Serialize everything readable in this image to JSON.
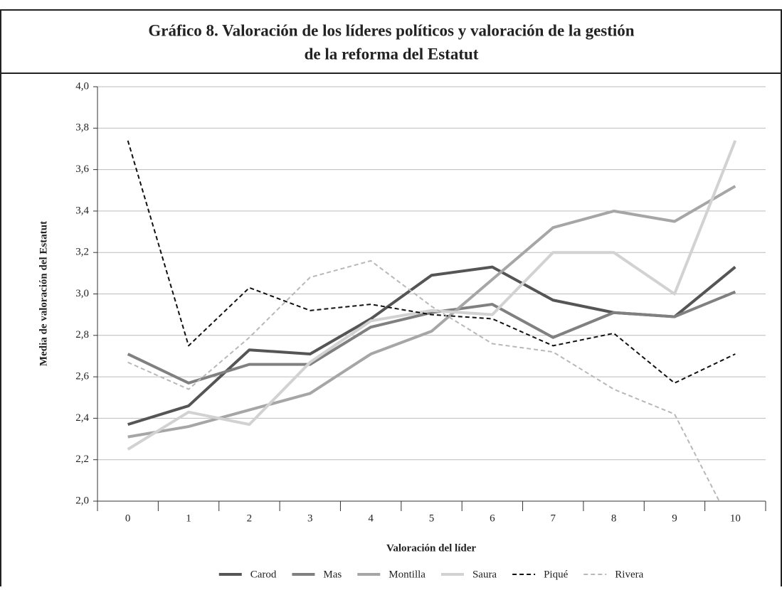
{
  "chart_data": {
    "type": "line",
    "title": [
      "Gráfico 8. Valoración de los líderes políticos y valoración de la gestión",
      "de la reforma del Estatut"
    ],
    "x_label": "Valoración del líder",
    "y_label": "Media de valoración del Estatut",
    "categories": [
      "0",
      "1",
      "2",
      "3",
      "4",
      "5",
      "6",
      "7",
      "8",
      "9",
      "10"
    ],
    "ylim": [
      2.0,
      4.0
    ],
    "yticks": [
      {
        "value": 2.0,
        "label": "2,0"
      },
      {
        "value": 2.2,
        "label": "2,2"
      },
      {
        "value": 2.4,
        "label": "2,4"
      },
      {
        "value": 2.6,
        "label": "2,6"
      },
      {
        "value": 2.8,
        "label": "2,8"
      },
      {
        "value": 3.0,
        "label": "3,0"
      },
      {
        "value": 3.2,
        "label": "3,2"
      },
      {
        "value": 3.4,
        "label": "3,4"
      },
      {
        "value": 3.6,
        "label": "3,6"
      },
      {
        "value": 3.8,
        "label": "3,8"
      },
      {
        "value": 4.0,
        "label": "4,0"
      }
    ],
    "grid": true,
    "legend": "bottom",
    "series": [
      {
        "name": "Carod",
        "color": "#555555",
        "style": "solid",
        "values": [
          2.37,
          2.46,
          2.73,
          2.71,
          2.88,
          3.09,
          3.13,
          2.97,
          2.91,
          2.89,
          3.13
        ]
      },
      {
        "name": "Mas",
        "color": "#808080",
        "style": "solid",
        "values": [
          2.71,
          2.57,
          2.66,
          2.66,
          2.84,
          2.91,
          2.95,
          2.79,
          2.91,
          2.89,
          3.01
        ]
      },
      {
        "name": "Montilla",
        "color": "#a6a6a6",
        "style": "solid",
        "values": [
          2.31,
          2.36,
          2.44,
          2.52,
          2.71,
          2.82,
          3.07,
          3.32,
          3.4,
          3.35,
          3.52
        ]
      },
      {
        "name": "Saura",
        "color": "#d2d2d2",
        "style": "solid",
        "values": [
          2.25,
          2.43,
          2.37,
          2.67,
          2.87,
          2.92,
          2.9,
          3.2,
          3.2,
          3.0,
          3.74
        ]
      },
      {
        "name": "Piqué",
        "color": "#111111",
        "style": "dashed",
        "values": [
          3.74,
          2.75,
          3.03,
          2.92,
          2.95,
          2.9,
          2.88,
          2.75,
          2.81,
          2.57,
          2.71
        ]
      },
      {
        "name": "Rivera",
        "color": "#b8b8b8",
        "style": "dashed",
        "values": [
          2.67,
          2.54,
          2.79,
          3.08,
          3.16,
          2.94,
          2.76,
          2.72,
          2.54,
          2.42,
          1.85
        ]
      }
    ]
  }
}
